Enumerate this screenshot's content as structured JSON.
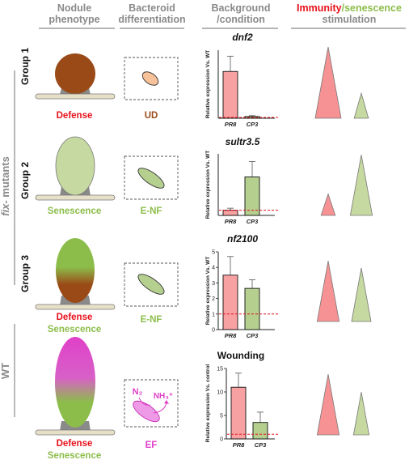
{
  "headers": {
    "nodule": [
      "Nodule",
      "phenotype"
    ],
    "bacteroid": [
      "Bacteroid",
      "differentiation"
    ],
    "background": [
      "Background",
      "/condition"
    ],
    "immunity": "Immunity",
    "senescence": "/senescence",
    "stimulation": "stimulation"
  },
  "side": {
    "fix_prefix": "fix",
    "fix_suffix": "- mutants",
    "wt": "WT"
  },
  "rows": [
    {
      "group": "Group 1",
      "phenotype": [
        "Defense"
      ],
      "bacteroid": "UD"
    },
    {
      "group": "Group 2",
      "phenotype": [
        "Senescence"
      ],
      "bacteroid": "E-NF"
    },
    {
      "group": "Group 3",
      "phenotype": [
        "Defense",
        "Senescence"
      ],
      "bacteroid": "E-NF"
    },
    {
      "group": "",
      "phenotype": [
        "Defense",
        "Senescence"
      ],
      "bacteroid": "EF"
    }
  ],
  "ef_labels": {
    "n2": "N₂",
    "nh3": "NH₃⁺"
  },
  "colors": {
    "defense_text": "#e8101a",
    "senescence_text": "#8cbd4a",
    "ud_text": "#9a4a17",
    "enf_text": "#8cbd4a",
    "ef_text": "#e040c8",
    "immunity_fill": "#f79294",
    "senescence_fill": "#c5d9a0",
    "bar_pr8": "#f7a1a2",
    "bar_cp3": "#b5cf8f",
    "dashed": "#e8101a",
    "grey": "#8a8a8a"
  },
  "chart_data": [
    {
      "type": "bar",
      "title": "dnf2",
      "ylabel": "Relative expression Vs.  WT",
      "categories": [
        "PR8",
        "CP3"
      ],
      "values": [
        55,
        2
      ],
      "errors": [
        18,
        1
      ],
      "ylim": [
        0,
        80
      ],
      "yticks": [],
      "reference": 1
    },
    {
      "type": "bar",
      "title": "sultr3.5",
      "ylabel": "Relative expression Vs.  WT",
      "categories": [
        "PR8",
        "CP3"
      ],
      "values": [
        1,
        7.5
      ],
      "errors": [
        0.4,
        3
      ],
      "ylim": [
        0,
        12
      ],
      "yticks": [],
      "reference": 1
    },
    {
      "type": "bar",
      "title": "nf2100",
      "ylabel": "Relative expression Vs.  WT",
      "categories": [
        "PR8",
        "CP3"
      ],
      "values": [
        3.5,
        2.65
      ],
      "errors": [
        1.2,
        0.55
      ],
      "ylim": [
        0,
        5
      ],
      "yticks": [
        0,
        1,
        2,
        3,
        4,
        5
      ],
      "reference": 1
    },
    {
      "type": "bar",
      "title": "Wounding",
      "ylabel": "Relative expression Vs. control",
      "categories": [
        "PR8",
        "CP3"
      ],
      "values": [
        11,
        3.5
      ],
      "errors": [
        3,
        2.2
      ],
      "ylim": [
        0,
        15
      ],
      "yticks": [
        0,
        5,
        10,
        15
      ],
      "reference": 1
    }
  ],
  "stimulation": [
    {
      "immunity": 1.0,
      "senescence": 0.35
    },
    {
      "immunity": 0.3,
      "senescence": 0.85
    },
    {
      "immunity": 0.85,
      "senescence": 0.75
    },
    {
      "immunity": 0.85,
      "senescence": 0.6
    }
  ]
}
